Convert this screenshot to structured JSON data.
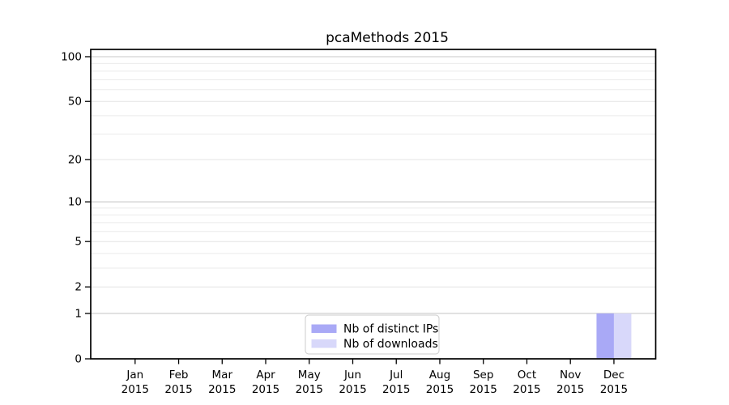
{
  "chart_data": {
    "type": "bar",
    "title": "pcaMethods 2015",
    "xlabel": "",
    "ylabel": "",
    "year": "2015",
    "categories": [
      "Jan",
      "Feb",
      "Mar",
      "Apr",
      "May",
      "Jun",
      "Jul",
      "Aug",
      "Sep",
      "Oct",
      "Nov",
      "Dec"
    ],
    "series": [
      {
        "name": "Nb of distinct IPs",
        "color": "#a9a9f6",
        "values": [
          0,
          0,
          0,
          0,
          0,
          0,
          0,
          0,
          0,
          0,
          0,
          1
        ]
      },
      {
        "name": "Nb of downloads",
        "color": "#d8d8fa",
        "values": [
          0,
          0,
          0,
          0,
          0,
          0,
          0,
          0,
          0,
          0,
          0,
          1
        ]
      }
    ],
    "y_axis": {
      "scale": "log(1+x)",
      "ylim": [
        0,
        100
      ],
      "ticks": [
        0,
        1,
        2,
        5,
        10,
        20,
        50,
        100
      ],
      "decade_gridlines": [
        1,
        10,
        100
      ],
      "major_gridlines": [
        2,
        5,
        20,
        50
      ],
      "minor_gridlines": [
        3,
        4,
        6,
        7,
        8,
        9,
        30,
        40,
        60,
        70,
        80,
        90
      ]
    },
    "legend": {
      "position": "bottom-center",
      "entries": [
        "Nb of distinct IPs",
        "Nb of downloads"
      ]
    },
    "colors": {
      "background": "#ffffff",
      "spine": "#000000",
      "decade_grid": "#c9c9c9",
      "major_grid": "#e4e4e4",
      "minor_grid": "#ebebeb",
      "legend_border": "#cccccc",
      "legend_background": "#ffffff"
    }
  }
}
